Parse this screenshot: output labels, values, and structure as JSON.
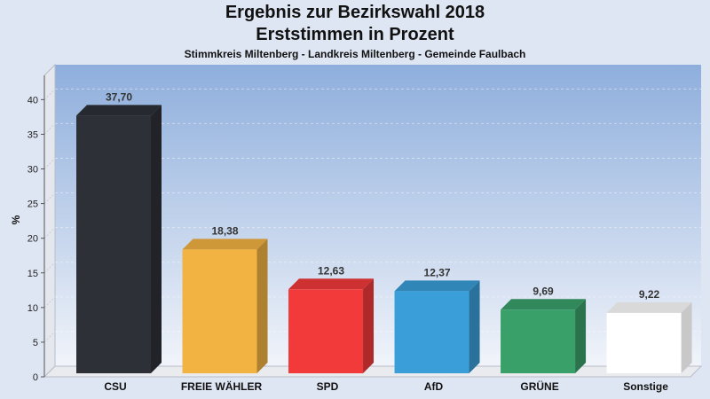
{
  "chart_data": {
    "type": "bar",
    "title": "Ergebnis zur Bezirkswahl 2018",
    "subtitle": "Erststimmen in Prozent",
    "caption": "Stimmkreis Miltenberg - Landkreis Miltenberg - Gemeinde Faulbach",
    "ylabel": "%",
    "ylim": [
      0,
      40
    ],
    "yticks": [
      "0",
      "5",
      "10",
      "15",
      "20",
      "25",
      "30",
      "35",
      "40"
    ],
    "grid": true,
    "categories": [
      "CSU",
      "FREIE WÄHLER",
      "SPD",
      "AfD",
      "GRÜNE",
      "Sonstige"
    ],
    "values": [
      37.7,
      18.38,
      12.63,
      12.37,
      9.69,
      9.22
    ],
    "value_labels": [
      "37,70",
      "18,38",
      "12,63",
      "12,37",
      "9,69",
      "9,22"
    ],
    "colors": [
      "#2e3038",
      "#f2b342",
      "#f23a3a",
      "#3a9ed8",
      "#3aa06a",
      "#ffffff"
    ]
  }
}
